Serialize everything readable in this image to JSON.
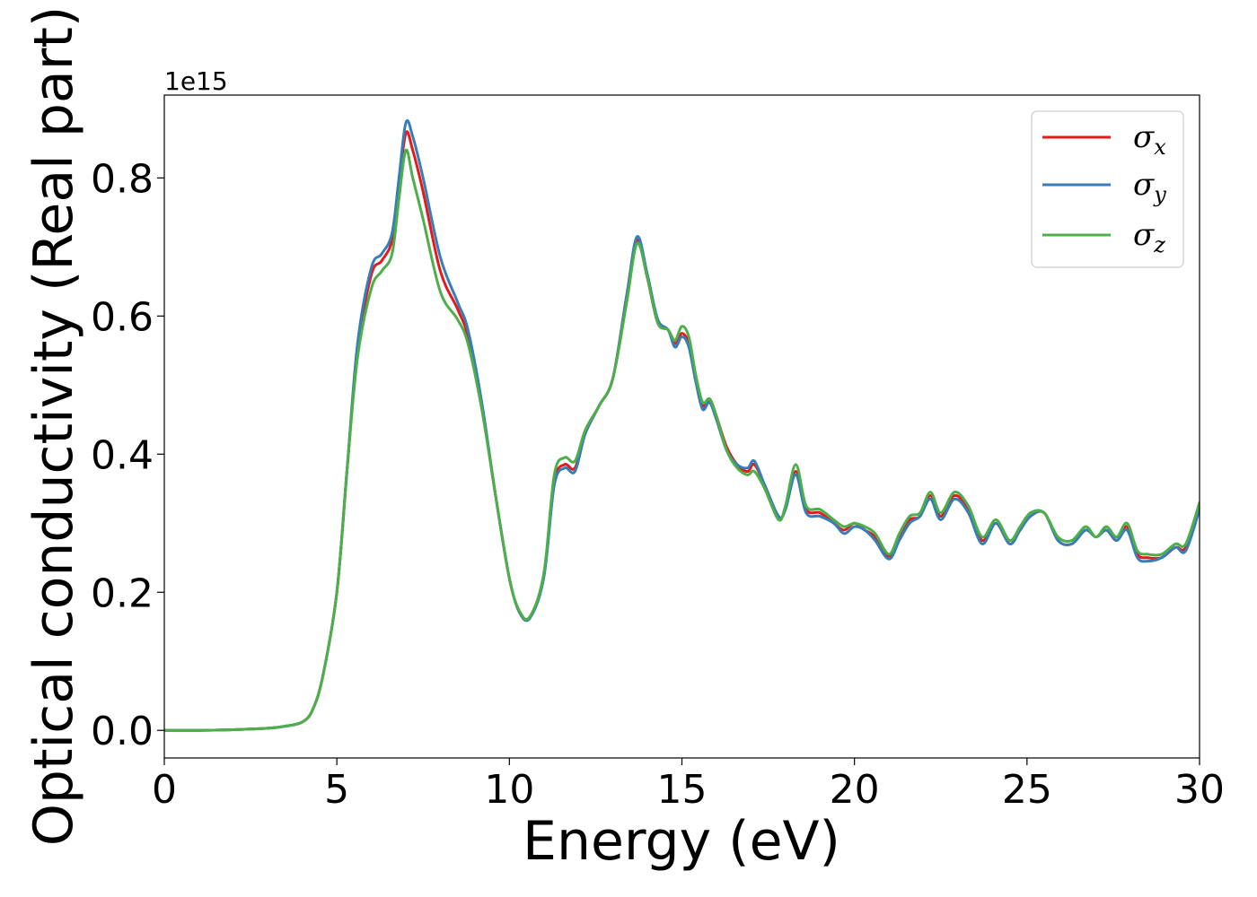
{
  "chart_data": {
    "type": "line",
    "title": "",
    "xlabel": "Energy (eV)",
    "ylabel": "Optical conductivity (Real part)",
    "y_offset_label": "1e15",
    "xlim": [
      0,
      30
    ],
    "ylim": [
      -0.04,
      0.92
    ],
    "xticks": [
      0,
      5,
      10,
      15,
      20,
      25,
      30
    ],
    "yticks": [
      0.0,
      0.2,
      0.4,
      0.6,
      0.8
    ],
    "xtick_labels": [
      "0",
      "5",
      "10",
      "15",
      "20",
      "25",
      "30"
    ],
    "ytick_labels": [
      "0.0",
      "0.2",
      "0.4",
      "0.6",
      "0.8"
    ],
    "grid": false,
    "legend_position": "top-right",
    "x": [
      0,
      1,
      2,
      3,
      3.5,
      4,
      4.3,
      4.6,
      5,
      5.3,
      5.6,
      6,
      6.3,
      6.6,
      6.8,
      7,
      7.2,
      7.5,
      8,
      8.5,
      8.8,
      9.2,
      9.6,
      10,
      10.3,
      10.6,
      11,
      11.3,
      11.6,
      11.9,
      12.2,
      12.6,
      13,
      13.4,
      13.7,
      14,
      14.3,
      14.6,
      14.8,
      15,
      15.2,
      15.4,
      15.6,
      15.8,
      16,
      16.3,
      16.6,
      16.9,
      17.1,
      17.4,
      17.8,
      18,
      18.3,
      18.6,
      19,
      19.4,
      19.7,
      20,
      20.3,
      20.6,
      21,
      21.3,
      21.6,
      21.9,
      22.2,
      22.5,
      22.9,
      23.3,
      23.7,
      24.1,
      24.5,
      24.8,
      25.1,
      25.5,
      25.9,
      26.3,
      26.7,
      27,
      27.3,
      27.6,
      27.9,
      28.2,
      28.5,
      28.9,
      29.3,
      29.6,
      30
    ],
    "series": [
      {
        "name": "σx",
        "color": "#e41a1c",
        "values": [
          0.0,
          0.0,
          0.001,
          0.003,
          0.006,
          0.012,
          0.03,
          0.08,
          0.2,
          0.38,
          0.55,
          0.66,
          0.68,
          0.71,
          0.79,
          0.865,
          0.84,
          0.78,
          0.665,
          0.61,
          0.57,
          0.47,
          0.34,
          0.22,
          0.17,
          0.165,
          0.225,
          0.36,
          0.385,
          0.38,
          0.43,
          0.47,
          0.51,
          0.63,
          0.71,
          0.655,
          0.59,
          0.58,
          0.56,
          0.575,
          0.56,
          0.51,
          0.47,
          0.48,
          0.455,
          0.41,
          0.385,
          0.375,
          0.385,
          0.355,
          0.31,
          0.32,
          0.375,
          0.32,
          0.315,
          0.3,
          0.29,
          0.3,
          0.29,
          0.28,
          0.252,
          0.28,
          0.305,
          0.31,
          0.34,
          0.31,
          0.34,
          0.32,
          0.275,
          0.3,
          0.27,
          0.29,
          0.31,
          0.315,
          0.275,
          0.27,
          0.29,
          0.28,
          0.29,
          0.275,
          0.295,
          0.255,
          0.25,
          0.25,
          0.265,
          0.265,
          0.325
        ]
      },
      {
        "name": "σy",
        "color": "#377eb8",
        "values": [
          0.0,
          0.0,
          0.001,
          0.003,
          0.006,
          0.012,
          0.03,
          0.08,
          0.2,
          0.38,
          0.56,
          0.67,
          0.69,
          0.72,
          0.8,
          0.88,
          0.86,
          0.8,
          0.685,
          0.62,
          0.58,
          0.475,
          0.34,
          0.22,
          0.17,
          0.163,
          0.222,
          0.355,
          0.38,
          0.375,
          0.43,
          0.47,
          0.51,
          0.63,
          0.715,
          0.66,
          0.595,
          0.58,
          0.555,
          0.57,
          0.555,
          0.505,
          0.465,
          0.475,
          0.45,
          0.405,
          0.385,
          0.38,
          0.39,
          0.355,
          0.31,
          0.32,
          0.37,
          0.315,
          0.31,
          0.3,
          0.285,
          0.295,
          0.29,
          0.275,
          0.248,
          0.275,
          0.3,
          0.31,
          0.335,
          0.305,
          0.335,
          0.315,
          0.27,
          0.3,
          0.27,
          0.29,
          0.31,
          0.315,
          0.275,
          0.27,
          0.29,
          0.28,
          0.29,
          0.275,
          0.29,
          0.25,
          0.245,
          0.25,
          0.265,
          0.26,
          0.32
        ]
      },
      {
        "name": "σz",
        "color": "#4daf4a",
        "values": [
          0.0,
          0.0,
          0.001,
          0.003,
          0.006,
          0.012,
          0.03,
          0.08,
          0.2,
          0.38,
          0.54,
          0.64,
          0.665,
          0.69,
          0.77,
          0.84,
          0.8,
          0.74,
          0.635,
          0.595,
          0.56,
          0.465,
          0.34,
          0.22,
          0.172,
          0.165,
          0.228,
          0.37,
          0.395,
          0.39,
          0.435,
          0.47,
          0.51,
          0.62,
          0.705,
          0.655,
          0.59,
          0.58,
          0.565,
          0.585,
          0.57,
          0.515,
          0.475,
          0.48,
          0.455,
          0.405,
          0.38,
          0.37,
          0.375,
          0.35,
          0.305,
          0.325,
          0.385,
          0.325,
          0.32,
          0.305,
          0.295,
          0.3,
          0.295,
          0.285,
          0.255,
          0.285,
          0.31,
          0.315,
          0.345,
          0.315,
          0.345,
          0.325,
          0.28,
          0.305,
          0.275,
          0.295,
          0.315,
          0.315,
          0.28,
          0.275,
          0.295,
          0.28,
          0.295,
          0.28,
          0.3,
          0.26,
          0.255,
          0.255,
          0.27,
          0.27,
          0.33
        ]
      }
    ]
  },
  "legend": {
    "items": [
      {
        "symbol": "σ",
        "subscript": "x",
        "color": "#e41a1c"
      },
      {
        "symbol": "σ",
        "subscript": "y",
        "color": "#377eb8"
      },
      {
        "symbol": "σ",
        "subscript": "z",
        "color": "#4daf4a"
      }
    ]
  }
}
